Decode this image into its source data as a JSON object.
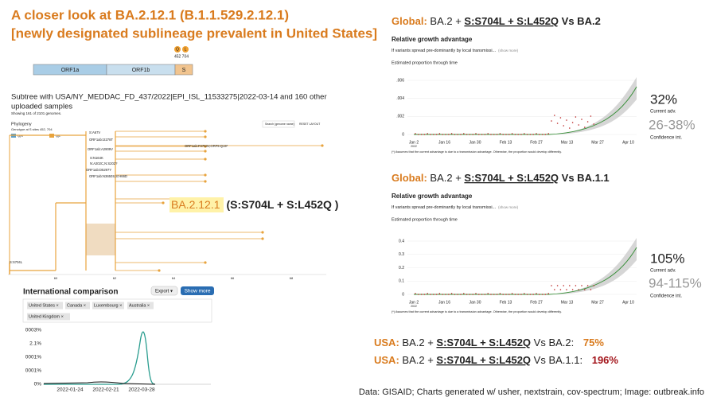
{
  "title": {
    "line1": "A closer look at BA.2.12.1 (B.1.1.529.2.12.1)",
    "line2": "[newly designated sublineage prevalent in United States]"
  },
  "genome": {
    "segments": [
      "ORF1a",
      "ORF1b",
      "S"
    ],
    "mutations": [
      "Q",
      "L"
    ],
    "positions": "452 704"
  },
  "subtree": {
    "heading_line1": "Subtree with USA/NY_MEDDAC_FD_437/2022|EPI_ISL_11533275|2022-03-14 and 160 other",
    "heading_line2": "uploaded samples",
    "subheading": "Showing 161 of 2101 genomes."
  },
  "phylogeny": {
    "title": "Phylogeny",
    "legend_title": "Genotype at S sites 452, 704",
    "legend": [
      "Q|S",
      "Q|L"
    ],
    "search": "Search (genome name)",
    "reset": "RESET LAYOUT",
    "labels": [
      "S:A67V",
      "ORF1ab:I2278T",
      "ORF1ab:A2909V",
      "ORF1ab:F3753V,ORF9:Q19*",
      "S:N164K",
      "N:A202C,N:S202?",
      "ORF1ab:D5297Y",
      "ORF1ab:N3650S,S:H66D",
      "S:S704L"
    ],
    "axis": [
      "60",
      "62",
      "64",
      "66",
      "68"
    ]
  },
  "callout": {
    "lineage": "BA.2.12.1",
    "mutations": "(S:S704L + S:L452Q )"
  },
  "international": {
    "title": "International comparison",
    "export": "Export ▾",
    "show_more": "Show more",
    "countries": [
      "United States ×",
      "Canada ×",
      "Luxembourg ×",
      "Australia ×",
      "United Kingdom ×"
    ],
    "yticks": [
      "0003%",
      "2.1%",
      "0001%",
      "0001%",
      "0%"
    ],
    "xticks": [
      "2022-01-24",
      "2022-02-21",
      "2022-03-28"
    ]
  },
  "panels": [
    {
      "prefix": "Global:",
      "base": "BA.2 +",
      "mutations": "S:S704L + S:L452Q",
      "vs": "Vs BA.2",
      "subtitle": "Relative growth advantage",
      "note": "If variants spread pre-dominantly by local transmissi...",
      "show_more": "(show more)",
      "chart_title": "Estimated proportion through time",
      "yticks": [
        ".006",
        ".004",
        ".002",
        "0"
      ],
      "xticks": [
        "Jan 2",
        "Jan 16",
        "Jan 30",
        "Feb 13",
        "Feb 27",
        "Mar 13",
        "Mar 27",
        "Apr 10"
      ],
      "year": "2022",
      "footnote": "(*) Assumes that the current advantage is due to a transmission advantage. Otherwise, the proportion would develop differently.",
      "advantage": "32%",
      "advantage_label": "Current adv.",
      "ci": "26-38%",
      "ci_label": "Confidence int."
    },
    {
      "prefix": "Global:",
      "base": "BA.2 +",
      "mutations": "S:S704L + S:L452Q",
      "vs": "Vs BA.1.1",
      "subtitle": "Relative growth advantage",
      "note": "If variants spread pre-dominantly by local transmissi...",
      "show_more": "(show more)",
      "chart_title": "Estimated proportion through time",
      "yticks": [
        "0.4",
        "0.3",
        "0.2",
        "0.1",
        "0"
      ],
      "xticks": [
        "Jan 2",
        "Jan 16",
        "Jan 30",
        "Feb 13",
        "Feb 27",
        "Mar 13",
        "Mar 27",
        "Apr 10"
      ],
      "year": "2022",
      "footnote": "(*) Assumes that the current advantage is due to a transmission advantage. Otherwise, the proportion would develop differently.",
      "advantage": "105%",
      "advantage_label": "Current adv.",
      "ci": "94-115%",
      "ci_label": "Confidence int."
    }
  ],
  "usa": [
    {
      "prefix": "USA:",
      "base": "BA.2 +",
      "mutations": "S:S704L + S:L452Q",
      "vs": "Vs BA.2:",
      "value": "75%"
    },
    {
      "prefix": "USA:",
      "base": "BA.2 +",
      "mutations": "S:S704L + S:L452Q",
      "vs": "Vs BA.1.1:",
      "value": "196%"
    }
  ],
  "footer": "Data: GISAID; Charts generated w/ usher, nextstrain, cov-spectrum; Image: outbreak.info"
}
